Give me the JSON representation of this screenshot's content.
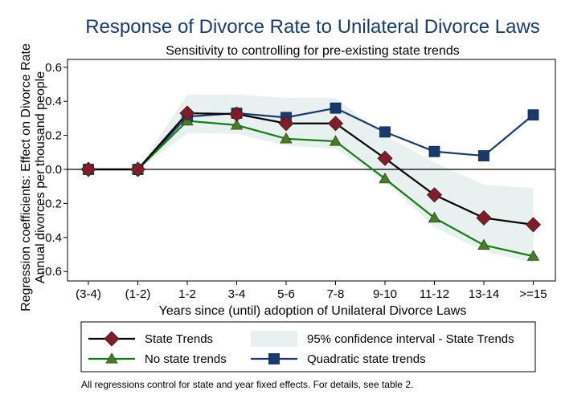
{
  "chart_data": {
    "type": "line",
    "title": "Response of Divorce Rate to Unilateral Divorce Laws",
    "subtitle": "Sensitivity to controlling for pre-existing state trends",
    "xlabel": "Years since (until) adoption of Unilateral Divorce Laws",
    "ylabel_line1": "Regression coefficients: Effect on Divorce Rate",
    "ylabel_line2": "Annual divorces per thousand people",
    "categories": [
      "(3-4)",
      "(1-2)",
      "1-2",
      "3-4",
      "5-6",
      "7-8",
      "9-10",
      "11-12",
      "13-14",
      ">=15"
    ],
    "yticks": [
      "-0.6",
      "-0.4",
      "-0.2",
      "0.0",
      "0.2",
      "0.4",
      "0.6"
    ],
    "ylim": [
      -0.65,
      0.65
    ],
    "grid": false,
    "legend_position": "bottom",
    "series": [
      {
        "name": "State Trends",
        "marker": "diamond",
        "color": "#7d1f2a",
        "line_color": "#000000",
        "values": [
          0.0,
          0.0,
          0.33,
          0.325,
          0.27,
          0.27,
          0.065,
          -0.15,
          -0.285,
          -0.325
        ]
      },
      {
        "name": "No state trends",
        "marker": "triangle",
        "color": "#4a7a2a",
        "line_color": "#137d13",
        "values": [
          0.0,
          0.0,
          0.285,
          0.26,
          0.18,
          0.165,
          -0.055,
          -0.285,
          -0.445,
          -0.51
        ]
      },
      {
        "name": "Quadratic state trends",
        "marker": "square",
        "color": "#1a3a6b",
        "line_color": "#1a3a6b",
        "values": [
          0.0,
          0.0,
          0.31,
          0.33,
          0.305,
          0.36,
          0.22,
          0.105,
          0.08,
          0.32
        ]
      }
    ],
    "confidence_band": {
      "name": "95% confidence interval - State Trends",
      "color": "#e8f1f0",
      "upper": [
        0.0,
        0.0,
        0.44,
        0.44,
        0.42,
        0.42,
        0.2,
        0.04,
        -0.09,
        -0.11
      ],
      "lower": [
        0.0,
        0.0,
        0.21,
        0.21,
        0.14,
        0.12,
        -0.07,
        -0.34,
        -0.48,
        -0.55
      ]
    },
    "note": "All regressions control for state and year fixed effects.  For details, see table 2."
  }
}
